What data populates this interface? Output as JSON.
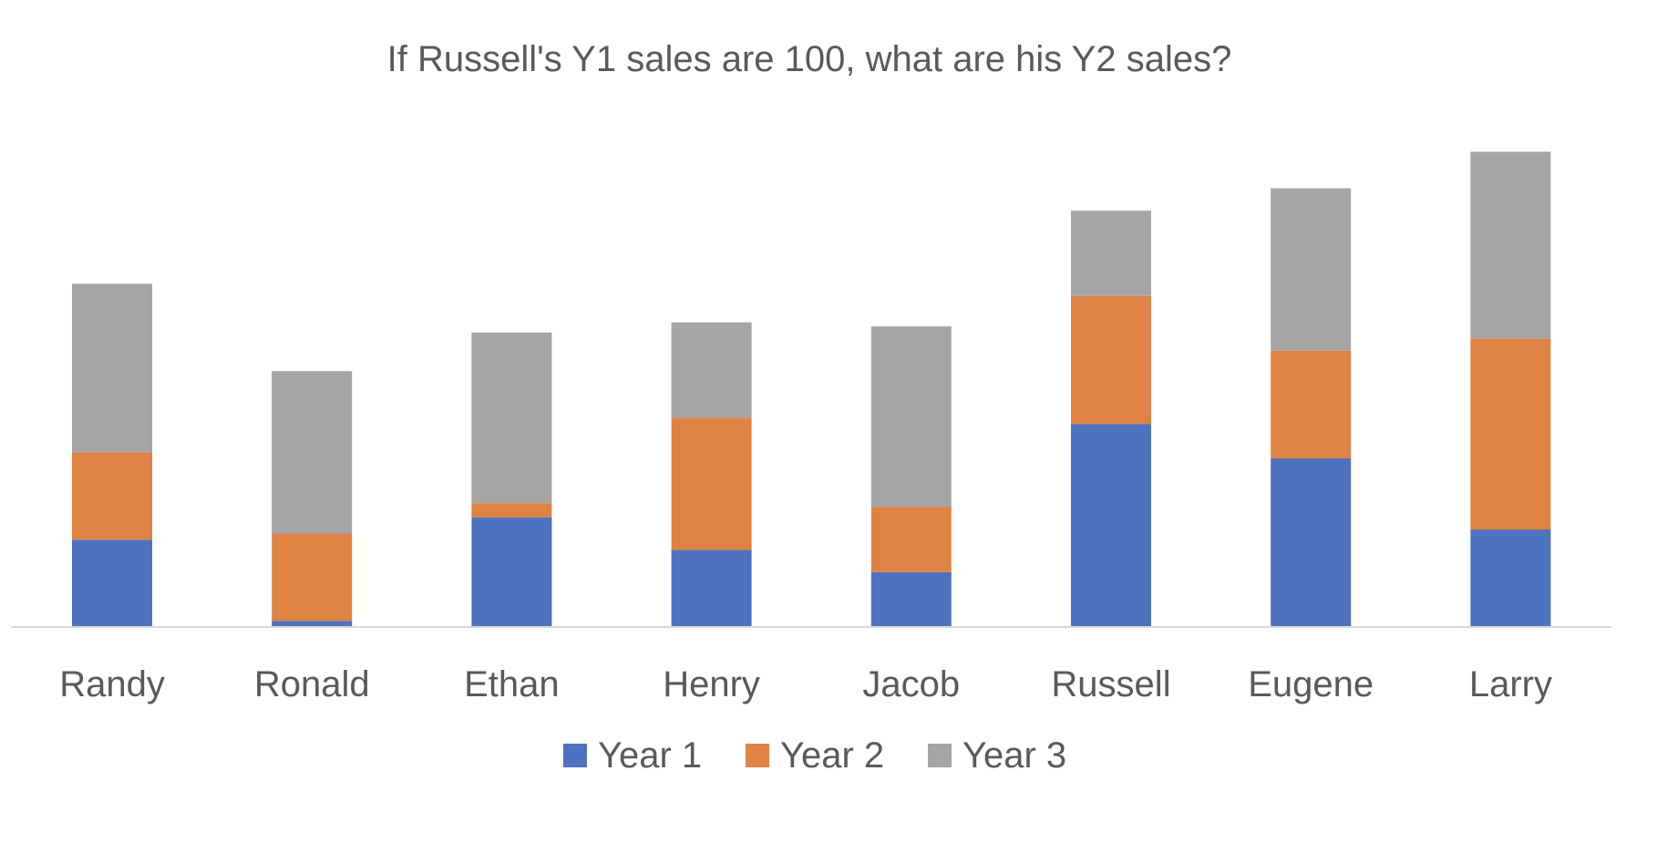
{
  "chart_data": {
    "type": "bar",
    "stacked": true,
    "title": "If Russell's Y1 sales are 100, what are his Y2 sales?",
    "xlabel": "",
    "ylabel": "",
    "categories": [
      "Randy",
      "Ronald",
      "Ethan",
      "Henry",
      "Jacob",
      "Russell",
      "Eugene",
      "Larry"
    ],
    "series": [
      {
        "name": "Year 1",
        "color": "#4F72BE",
        "values": [
          43,
          3,
          54,
          38,
          27,
          100,
          83,
          48
        ]
      },
      {
        "name": "Year 2",
        "color": "#DE8344",
        "values": [
          43,
          43,
          7,
          65,
          32,
          63,
          53,
          94
        ]
      },
      {
        "name": "Year 3",
        "color": "#A5A5A5",
        "values": [
          83,
          80,
          84,
          47,
          89,
          42,
          80,
          92
        ]
      }
    ],
    "ylim": [
      0,
      240
    ],
    "y_axis_visible": false,
    "grid": false,
    "legend_position": "bottom"
  }
}
